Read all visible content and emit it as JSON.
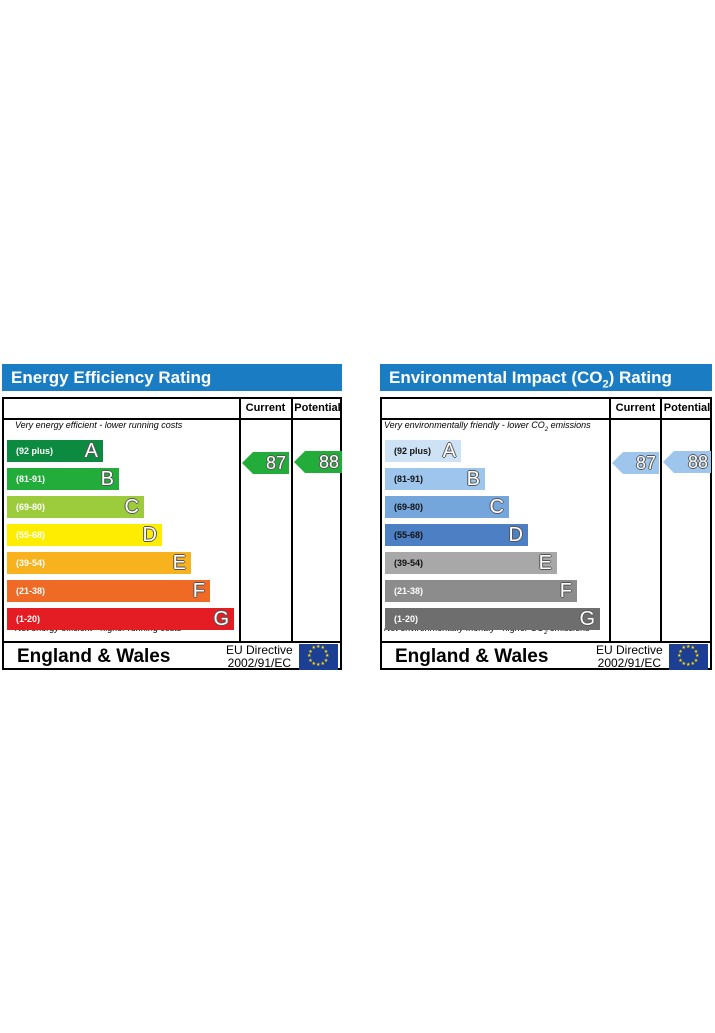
{
  "chart_data": [
    {
      "type": "bar",
      "title": "Energy Efficiency Rating",
      "columns": [
        "Current",
        "Potential"
      ],
      "top_note": "Very energy efficient - lower running costs",
      "bottom_note": "Not energy efficient - higher running costs",
      "bands": [
        {
          "range": "(92 plus)",
          "letter": "A",
          "color": "#0c8a3f",
          "dark_text": false
        },
        {
          "range": "(81-91)",
          "letter": "B",
          "color": "#22ac3a",
          "dark_text": false
        },
        {
          "range": "(69-80)",
          "letter": "C",
          "color": "#9ccc3b",
          "dark_text": false
        },
        {
          "range": "(55-68)",
          "letter": "D",
          "color": "#ffed00",
          "dark_text": false
        },
        {
          "range": "(39-54)",
          "letter": "E",
          "color": "#f8b21d",
          "dark_text": false
        },
        {
          "range": "(21-38)",
          "letter": "F",
          "color": "#ee6a25",
          "dark_text": false
        },
        {
          "range": "(1-20)",
          "letter": "G",
          "color": "#e31d23",
          "dark_text": false
        }
      ],
      "current": {
        "value": "87",
        "color": "#22ac3a"
      },
      "potential": {
        "value": "88",
        "color": "#22ac3a"
      },
      "region": "England & Wales",
      "directive_line1": "EU Directive",
      "directive_line2": "2002/91/EC"
    },
    {
      "type": "bar",
      "title_main": "Environmental Impact (CO",
      "title_sub": "2",
      "title_end": ") Rating",
      "columns": [
        "Current",
        "Potential"
      ],
      "top_note_main": "Very environmentally friendly - lower  CO",
      "top_note_sub": "2",
      "top_note_end": " emissions",
      "bottom_note_main": "Not environmentally friendly - higher  CO",
      "bottom_note_sub": "2",
      "bottom_note_end": " emissions",
      "bands": [
        {
          "range": "(92 plus)",
          "letter": "A",
          "color": "#cde3f5",
          "dark_text": true
        },
        {
          "range": "(81-91)",
          "letter": "B",
          "color": "#9ec6ec",
          "dark_text": true
        },
        {
          "range": "(69-80)",
          "letter": "C",
          "color": "#74a6dc",
          "dark_text": true
        },
        {
          "range": "(55-68)",
          "letter": "D",
          "color": "#4d7fc4",
          "dark_text": true
        },
        {
          "range": "(39-54)",
          "letter": "E",
          "color": "#a8a8a8",
          "dark_text": true
        },
        {
          "range": "(21-38)",
          "letter": "F",
          "color": "#8c8c8c",
          "dark_text": false
        },
        {
          "range": "(1-20)",
          "letter": "G",
          "color": "#6e6e6e",
          "dark_text": false
        }
      ],
      "current": {
        "value": "87",
        "color": "#9ec6ec"
      },
      "potential": {
        "value": "88",
        "color": "#9ec6ec"
      },
      "region": "England & Wales",
      "directive_line1": "EU Directive",
      "directive_line2": "2002/91/EC"
    }
  ],
  "colors": {
    "title_bar": "#1a7dc4",
    "eu_flag": "#1c3f94",
    "eu_stars": "#ffdd00"
  }
}
